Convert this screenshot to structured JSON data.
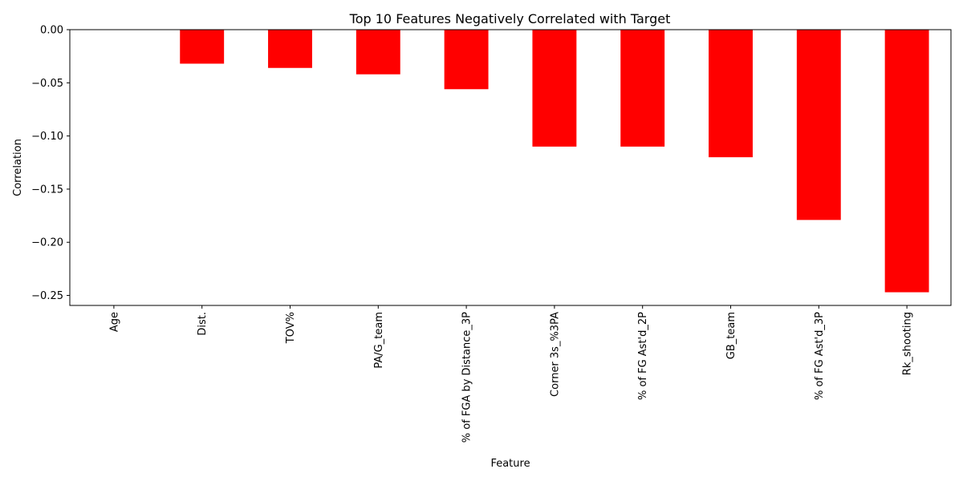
{
  "chart_data": {
    "type": "bar",
    "title": "Top 10 Features Negatively Correlated with Target",
    "xlabel": "Feature",
    "ylabel": "Correlation",
    "categories": [
      "Age",
      "Dist.",
      "TOV%",
      "PA/G_team",
      "% of FGA by Distance_3P",
      "Corner 3s_%3PA",
      "% of FG Ast'd_2P",
      "GB_team",
      "% of FG Ast'd_3P",
      "Rk_shooting"
    ],
    "values": [
      0.0,
      -0.032,
      -0.036,
      -0.042,
      -0.056,
      -0.11,
      -0.11,
      -0.12,
      -0.179,
      -0.247
    ],
    "ylim": [
      -0.2594,
      0.0
    ],
    "yticks": [
      0.0,
      -0.05,
      -0.1,
      -0.15,
      -0.2,
      -0.25
    ],
    "ytick_labels": [
      "0.00",
      "−0.05",
      "−0.10",
      "−0.15",
      "−0.20",
      "−0.25"
    ],
    "bar_color": "#ff0000",
    "grid": false,
    "legend": "none"
  }
}
